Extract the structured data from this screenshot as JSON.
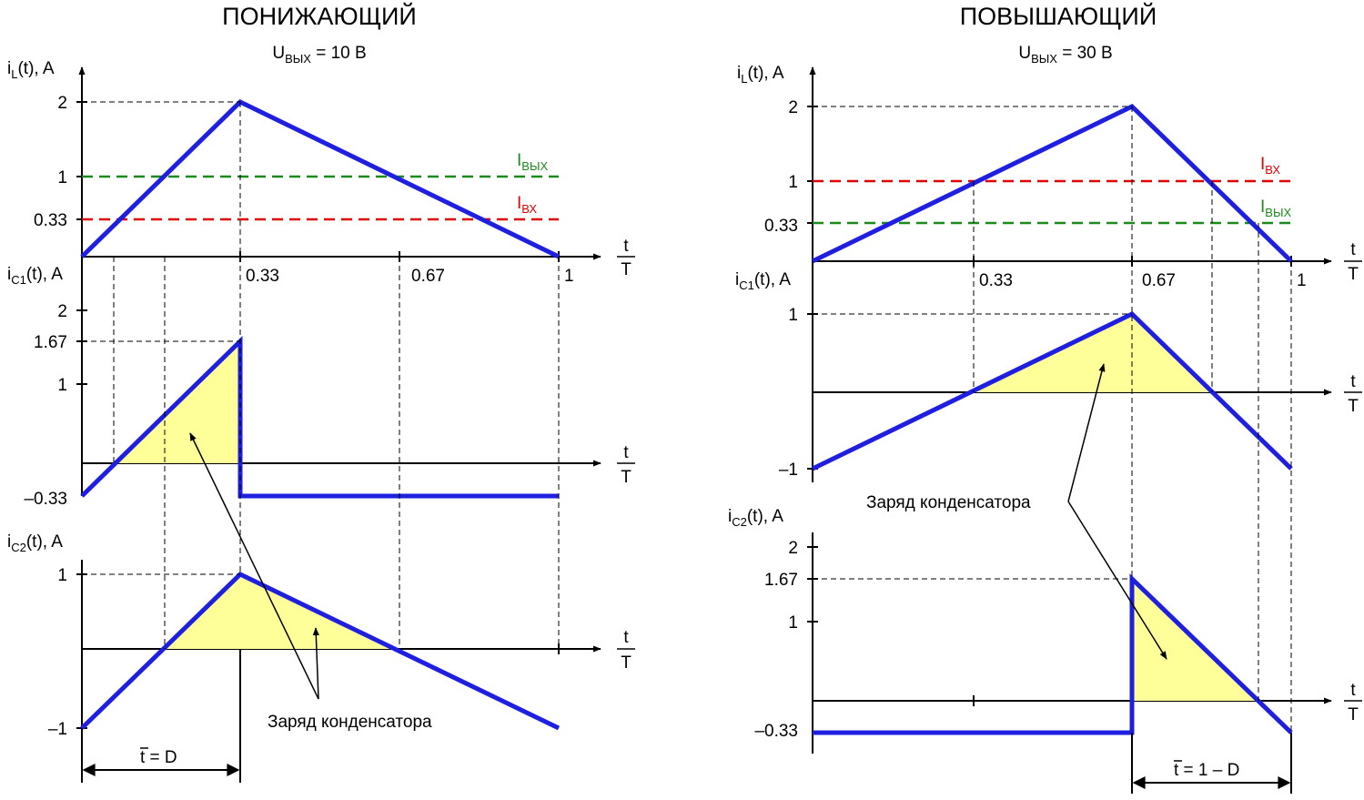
{
  "colors": {
    "waveform": "#1f1fe0",
    "charge_fill": "#ffff99",
    "output_current": "#1a8a1a",
    "input_current": "#e00000",
    "axis": "#000000"
  },
  "common": {
    "t_num": "t",
    "t_den": "T",
    "annotation": "Заряд конденсатора"
  },
  "chart_data": [
    {
      "type": "line",
      "title": "ПОНИЖАЮЩИЙ",
      "subtitle": {
        "main": "U",
        "sub": "ВЫХ",
        "tail": " = 10 В"
      },
      "x_ticks": [
        "0.33",
        "0.67",
        "1"
      ],
      "bottom_marker": "t = D",
      "panels": [
        {
          "ylabel": {
            "main": "i",
            "sub": "L",
            "tail": "(t), A"
          },
          "y_ticks": [
            "2",
            "1",
            "0.33"
          ],
          "series": [
            {
              "t": [
                0,
                0.333,
                1
              ],
              "values": [
                0,
                2,
                0
              ]
            }
          ],
          "ref_lines": [
            {
              "name": {
                "main": "I",
                "sub": "ВЫХ"
              },
              "value": 1,
              "color": "#1a8a1a"
            },
            {
              "name": {
                "main": "I",
                "sub": "ВХ"
              },
              "value": 0.333,
              "color": "#e00000"
            }
          ]
        },
        {
          "ylabel": {
            "main": "i",
            "sub": "C1",
            "tail": "(t), A"
          },
          "y_ticks": [
            "2",
            "1.67",
            "1",
            "–0.33"
          ],
          "series": [
            {
              "t": [
                0,
                0.333,
                0.333,
                1
              ],
              "values": [
                -0.333,
                1.667,
                -0.333,
                -0.333
              ]
            }
          ]
        },
        {
          "ylabel": {
            "main": "i",
            "sub": "C2",
            "tail": "(t), A"
          },
          "y_ticks": [
            "1",
            "–1"
          ],
          "series": [
            {
              "t": [
                0,
                0.333,
                1
              ],
              "values": [
                -1,
                1,
                -1
              ]
            }
          ]
        }
      ]
    },
    {
      "type": "line",
      "title": "ПОВЫШАЮЩИЙ",
      "subtitle": {
        "main": "U",
        "sub": "ВЫХ",
        "tail": " = 30 В"
      },
      "x_ticks": [
        "0.33",
        "0.67",
        "1"
      ],
      "bottom_marker": "t = 1 – D",
      "panels": [
        {
          "ylabel": {
            "main": "i",
            "sub": "L",
            "tail": "(t), A"
          },
          "y_ticks": [
            "2",
            "1",
            "0.33"
          ],
          "series": [
            {
              "t": [
                0,
                0.667,
                1
              ],
              "values": [
                0,
                2,
                0
              ]
            }
          ],
          "ref_lines": [
            {
              "name": {
                "main": "I",
                "sub": "ВХ"
              },
              "value": 1,
              "color": "#e00000"
            },
            {
              "name": {
                "main": "I",
                "sub": "ВЫХ"
              },
              "value": 0.333,
              "color": "#1a8a1a"
            }
          ]
        },
        {
          "ylabel": {
            "main": "i",
            "sub": "C1",
            "tail": "(t), A"
          },
          "y_ticks": [
            "1",
            "–1"
          ],
          "series": [
            {
              "t": [
                0,
                0.667,
                1
              ],
              "values": [
                -1,
                1,
                -1
              ]
            }
          ]
        },
        {
          "ylabel": {
            "main": "i",
            "sub": "C2",
            "tail": "(t), A"
          },
          "y_ticks": [
            "2",
            "1.67",
            "1",
            "–0.33"
          ],
          "series": [
            {
              "t": [
                0,
                0.667,
                0.667,
                1
              ],
              "values": [
                -0.333,
                -0.333,
                1.667,
                -0.333
              ]
            }
          ]
        }
      ]
    }
  ]
}
